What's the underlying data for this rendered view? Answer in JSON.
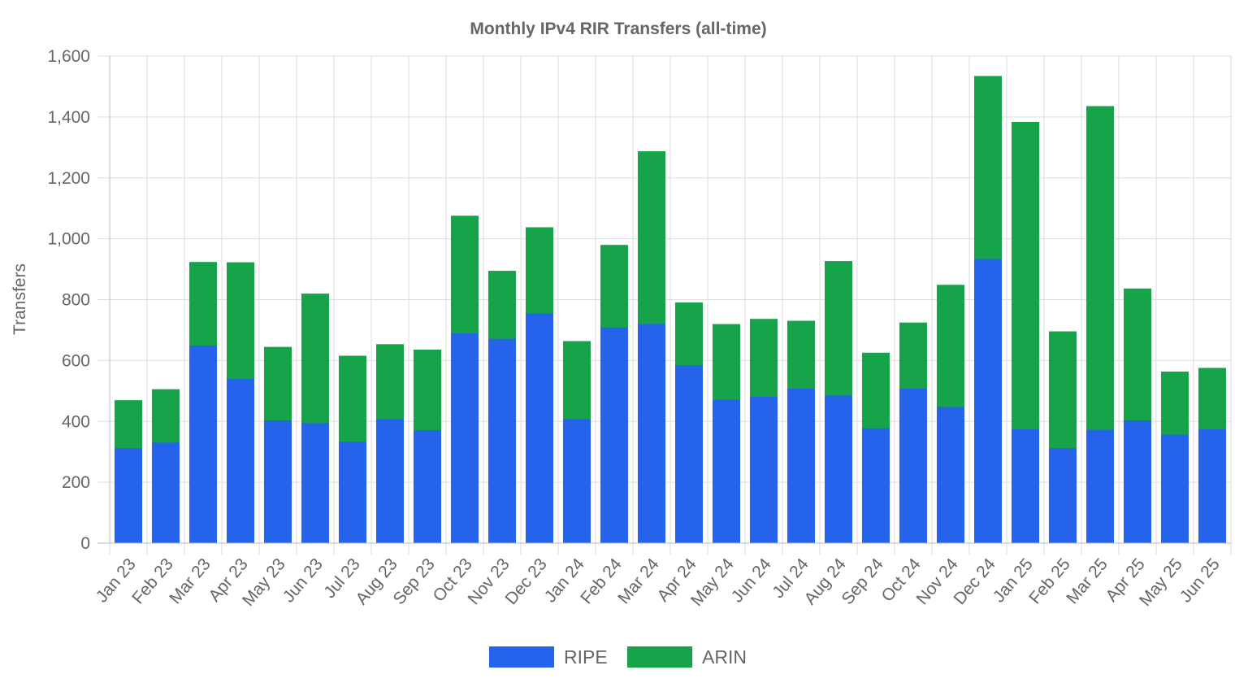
{
  "chart_data": {
    "type": "bar",
    "stacked": true,
    "title": "Monthly IPv4 RIR Transfers (all-time)",
    "xlabel": "",
    "ylabel": "Transfers",
    "ylim": [
      0,
      1600
    ],
    "yticks": [
      0,
      200,
      400,
      600,
      800,
      1000,
      1200,
      1400,
      1600
    ],
    "grid": true,
    "legend_position": "bottom-center",
    "categories": [
      "Jan 23",
      "Feb 23",
      "Mar 23",
      "Apr 23",
      "May 23",
      "Jun 23",
      "Jul 23",
      "Aug 23",
      "Sep 23",
      "Oct 23",
      "Nov 23",
      "Dec 23",
      "Jan 24",
      "Feb 24",
      "Mar 24",
      "Apr 24",
      "May 24",
      "Jun 24",
      "Jul 24",
      "Aug 24",
      "Sep 24",
      "Oct 24",
      "Nov 24",
      "Dec 24",
      "Jan 25",
      "Feb 25",
      "Mar 25",
      "Apr 25",
      "May 25",
      "Jun 25"
    ],
    "series": [
      {
        "name": "RIPE",
        "color": "#2563eb",
        "values": [
          313,
          331,
          650,
          540,
          404,
          395,
          334,
          408,
          372,
          690,
          672,
          755,
          408,
          709,
          721,
          585,
          472,
          482,
          508,
          486,
          378,
          508,
          448,
          934,
          375,
          313,
          373,
          404,
          357,
          375
        ]
      },
      {
        "name": "ARIN",
        "color": "#16a34a",
        "values": [
          156,
          174,
          273,
          382,
          240,
          424,
          281,
          245,
          263,
          385,
          222,
          282,
          255,
          270,
          566,
          205,
          247,
          254,
          222,
          440,
          247,
          216,
          400,
          600,
          1008,
          382,
          1062,
          432,
          206,
          200
        ]
      }
    ]
  }
}
